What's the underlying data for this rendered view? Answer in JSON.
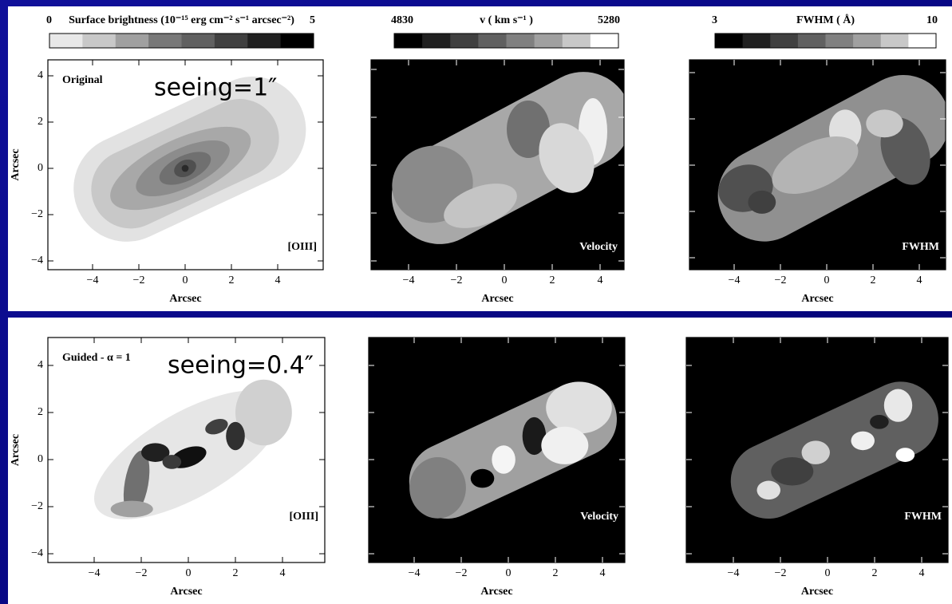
{
  "axes": {
    "xticks": [
      "−4",
      "−2",
      "0",
      "2",
      "4"
    ],
    "yticks": [
      "4",
      "2",
      "0",
      "−2",
      "−4"
    ],
    "xlabel": "Arcsec",
    "ylabel": "Arcsec"
  },
  "row_top": {
    "colorbars": [
      {
        "min": "0",
        "title": "Surface brightness (10⁻¹⁵ erg cm⁻² s⁻¹ arcsec⁻²)",
        "max": "5"
      },
      {
        "min": "4830",
        "title": "v ( km s⁻¹ )",
        "max": "5280"
      },
      {
        "min": "3",
        "title": "FWHM ( Å)",
        "max": "10"
      }
    ],
    "panels": [
      {
        "label": "Original",
        "note": "seeing=1″",
        "tag": "[OIII]"
      },
      {
        "tag": "Velocity"
      },
      {
        "tag": "FWHM"
      }
    ]
  },
  "row_bottom": {
    "panels": [
      {
        "label": "Guided - α = 1",
        "note": "seeing=0.4″",
        "tag": "[OIII]"
      },
      {
        "tag": "Velocity"
      },
      {
        "tag": "FWHM"
      }
    ]
  }
}
